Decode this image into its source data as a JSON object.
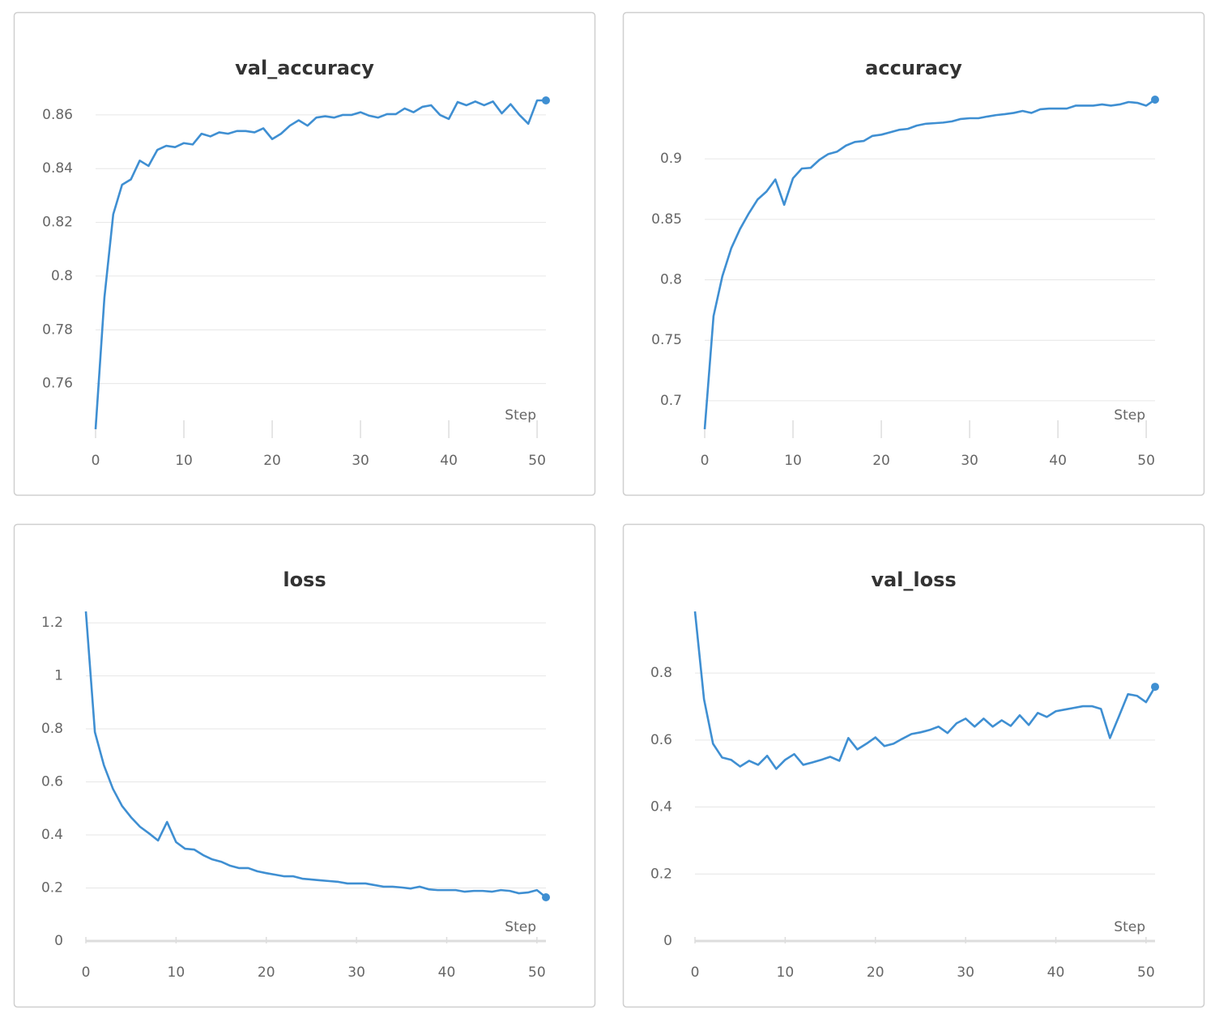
{
  "chart_data": [
    {
      "type": "line",
      "title": "val_accuracy",
      "x_label": "Step",
      "color": "#3f8fd2",
      "grid": true,
      "x": [
        0,
        1,
        2,
        3,
        4,
        5,
        6,
        7,
        8,
        9,
        10,
        11,
        12,
        13,
        14,
        15,
        16,
        17,
        18,
        19,
        20,
        21,
        22,
        23,
        24,
        25,
        26,
        27,
        28,
        29,
        30,
        31,
        32,
        33,
        34,
        35,
        36,
        37,
        38,
        39,
        40,
        41,
        42,
        43,
        44,
        45,
        46,
        47,
        48,
        49,
        50,
        51
      ],
      "values": [
        0.743,
        0.792,
        0.823,
        0.834,
        0.836,
        0.843,
        0.841,
        0.847,
        0.8485,
        0.848,
        0.8495,
        0.849,
        0.853,
        0.852,
        0.8535,
        0.853,
        0.854,
        0.854,
        0.8535,
        0.855,
        0.851,
        0.853,
        0.856,
        0.858,
        0.856,
        0.859,
        0.8595,
        0.859,
        0.86,
        0.86,
        0.861,
        0.8597,
        0.859,
        0.8603,
        0.8603,
        0.8624,
        0.861,
        0.863,
        0.8636,
        0.86,
        0.8585,
        0.8648,
        0.8636,
        0.865,
        0.8636,
        0.865,
        0.8606,
        0.864,
        0.86,
        0.8567,
        0.8654,
        0.8654
      ],
      "xlim": [
        0,
        51
      ],
      "xticks": [
        0,
        10,
        20,
        30,
        40,
        50
      ],
      "ylim": [
        0.743,
        0.8657
      ],
      "yticks": [
        0.76,
        0.78,
        0.8,
        0.82,
        0.84,
        0.86
      ]
    },
    {
      "type": "line",
      "title": "accuracy",
      "x_label": "Step",
      "color": "#3f8fd2",
      "grid": true,
      "x": [
        0,
        1,
        2,
        3,
        4,
        5,
        6,
        7,
        8,
        9,
        10,
        11,
        12,
        13,
        14,
        15,
        16,
        17,
        18,
        19,
        20,
        21,
        22,
        23,
        24,
        25,
        26,
        27,
        28,
        29,
        30,
        31,
        32,
        33,
        34,
        35,
        36,
        37,
        38,
        39,
        40,
        41,
        42,
        43,
        44,
        45,
        46,
        47,
        48,
        49,
        50,
        51
      ],
      "values": [
        0.6765,
        0.77,
        0.803,
        0.826,
        0.842,
        0.855,
        0.8665,
        0.873,
        0.883,
        0.862,
        0.884,
        0.892,
        0.8926,
        0.8993,
        0.904,
        0.906,
        0.911,
        0.914,
        0.9148,
        0.919,
        0.92,
        0.922,
        0.924,
        0.9248,
        0.9275,
        0.929,
        0.9295,
        0.93,
        0.931,
        0.933,
        0.9336,
        0.9336,
        0.935,
        0.9362,
        0.937,
        0.938,
        0.9396,
        0.938,
        0.941,
        0.9416,
        0.9416,
        0.9416,
        0.944,
        0.944,
        0.944,
        0.945,
        0.944,
        0.945,
        0.947,
        0.9463,
        0.944,
        0.949
      ],
      "xlim": [
        0,
        51
      ],
      "xticks": [
        0,
        10,
        20,
        30,
        40,
        50
      ],
      "ylim": [
        0.6765,
        0.949
      ],
      "yticks": [
        0.7,
        0.75,
        0.8,
        0.85,
        0.9
      ]
    },
    {
      "type": "line",
      "title": "loss",
      "x_label": "Step",
      "color": "#3f8fd2",
      "grid": true,
      "x": [
        0,
        1,
        2,
        3,
        4,
        5,
        6,
        7,
        8,
        9,
        10,
        11,
        12,
        13,
        14,
        15,
        16,
        17,
        18,
        19,
        20,
        21,
        22,
        23,
        24,
        25,
        26,
        27,
        28,
        29,
        30,
        31,
        32,
        33,
        34,
        35,
        36,
        37,
        38,
        39,
        40,
        41,
        42,
        43,
        44,
        45,
        46,
        47,
        48,
        49,
        50,
        51
      ],
      "values": [
        1.243,
        0.788,
        0.663,
        0.574,
        0.51,
        0.467,
        0.431,
        0.406,
        0.379,
        0.449,
        0.373,
        0.348,
        0.345,
        0.324,
        0.308,
        0.299,
        0.284,
        0.275,
        0.275,
        0.263,
        0.256,
        0.25,
        0.244,
        0.244,
        0.235,
        0.232,
        0.229,
        0.226,
        0.223,
        0.217,
        0.217,
        0.217,
        0.211,
        0.205,
        0.205,
        0.202,
        0.198,
        0.205,
        0.195,
        0.192,
        0.192,
        0.192,
        0.186,
        0.189,
        0.189,
        0.186,
        0.192,
        0.189,
        0.18,
        0.183,
        0.192,
        0.165
      ],
      "xlim": [
        0,
        51
      ],
      "xticks": [
        0,
        10,
        20,
        30,
        40,
        50
      ],
      "ylim": [
        0,
        1.243
      ],
      "yticks": [
        0,
        0.2,
        0.4,
        0.6,
        0.8,
        1,
        1.2
      ]
    },
    {
      "type": "line",
      "title": "val_loss",
      "x_label": "Step",
      "color": "#3f8fd2",
      "grid": true,
      "x": [
        0,
        1,
        2,
        3,
        4,
        5,
        6,
        7,
        8,
        9,
        10,
        11,
        12,
        13,
        14,
        15,
        16,
        17,
        18,
        19,
        20,
        21,
        22,
        23,
        24,
        25,
        26,
        27,
        28,
        29,
        30,
        31,
        32,
        33,
        34,
        35,
        36,
        37,
        38,
        39,
        40,
        41,
        42,
        43,
        44,
        45,
        46,
        47,
        48,
        49,
        50,
        51
      ],
      "values": [
        0.984,
        0.722,
        0.589,
        0.548,
        0.541,
        0.521,
        0.538,
        0.526,
        0.553,
        0.514,
        0.541,
        0.558,
        0.526,
        0.533,
        0.541,
        0.55,
        0.538,
        0.606,
        0.572,
        0.589,
        0.608,
        0.582,
        0.589,
        0.604,
        0.618,
        0.623,
        0.63,
        0.64,
        0.621,
        0.65,
        0.664,
        0.64,
        0.664,
        0.64,
        0.659,
        0.642,
        0.674,
        0.645,
        0.681,
        0.669,
        0.686,
        0.691,
        0.696,
        0.701,
        0.701,
        0.693,
        0.606,
        0.671,
        0.737,
        0.732,
        0.713,
        0.759
      ],
      "xlim": [
        0,
        51
      ],
      "xticks": [
        0,
        10,
        20,
        30,
        40,
        50
      ],
      "ylim": [
        0,
        0.984
      ],
      "yticks": [
        0,
        0.2,
        0.4,
        0.6,
        0.8
      ]
    }
  ]
}
